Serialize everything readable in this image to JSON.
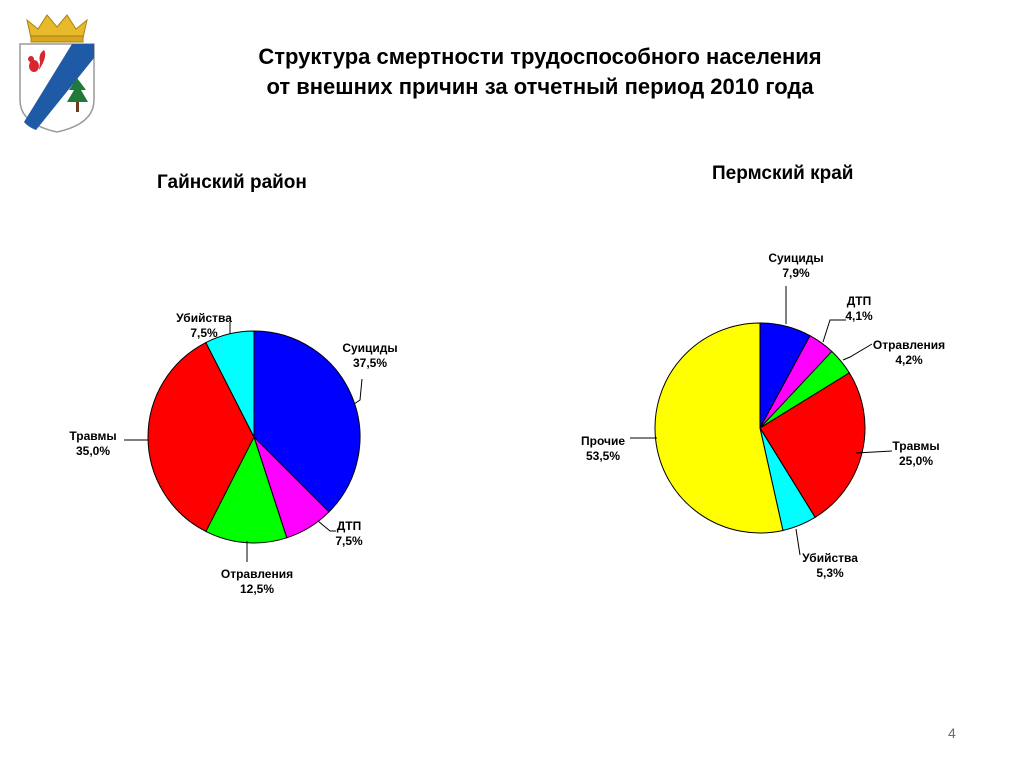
{
  "slide": {
    "title_line1": "Структура смертности трудоспособного населения",
    "title_line2": "от внешних причин за отчетный период 2010 года",
    "page_number": "4"
  },
  "emblem": {
    "icon": "coat-of-arms-icon",
    "colors": {
      "blue": "#1f5aa6",
      "gold": "#e8b92a",
      "red": "#d8262d",
      "green": "#1f7a3a"
    }
  },
  "chart_data": [
    {
      "type": "pie",
      "title": "Гайнский район",
      "categories": [
        "Суициды",
        "ДТП",
        "Отравления",
        "Травмы",
        "Убийства"
      ],
      "values": [
        37.5,
        7.5,
        12.5,
        35.0,
        7.5
      ],
      "labels": [
        "37,5%",
        "7,5%",
        "12,5%",
        "35,0%",
        "7,5%"
      ],
      "colors": [
        "#0000ff",
        "#ff00ff",
        "#00ff00",
        "#ff0000",
        "#00ffff"
      ],
      "start": "12 o'clock, clockwise"
    },
    {
      "type": "pie",
      "title": "Пермский край",
      "categories": [
        "Суициды",
        "ДТП",
        "Отравления",
        "Травмы",
        "Убийства",
        "Прочие"
      ],
      "values": [
        7.9,
        4.1,
        4.2,
        25.0,
        5.3,
        53.5
      ],
      "labels": [
        "7,9%",
        "4,1%",
        "4,2%",
        "25,0%",
        "5,3%",
        "53,5%"
      ],
      "colors": [
        "#0000ff",
        "#ff00ff",
        "#00ff00",
        "#ff0000",
        "#00ffff",
        "#ffff00"
      ],
      "start": "12 o'clock, clockwise"
    }
  ]
}
